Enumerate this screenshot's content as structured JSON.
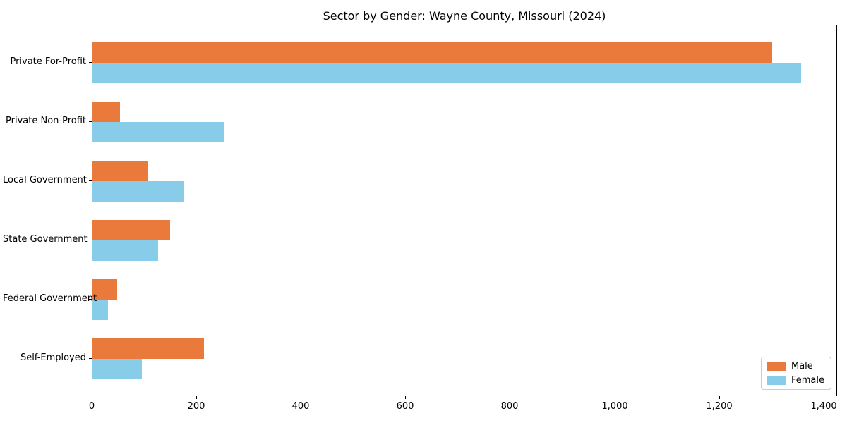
{
  "chart_data": {
    "type": "bar",
    "orientation": "horizontal",
    "title": "Sector by Gender: Wayne County, Missouri (2024)",
    "categories": [
      "Private For-Profit",
      "Private Non-Profit",
      "Local Government",
      "State Government",
      "Federal Government",
      "Self-Employed"
    ],
    "series": [
      {
        "name": "Male",
        "color": "#e97a3c",
        "values": [
          1300,
          52,
          107,
          148,
          47,
          213
        ]
      },
      {
        "name": "Female",
        "color": "#87cdea",
        "values": [
          1356,
          251,
          176,
          126,
          30,
          95
        ]
      }
    ],
    "xlabel": "",
    "ylabel": "",
    "xlim": [
      0,
      1426
    ],
    "x_ticks": [
      0,
      200,
      400,
      600,
      800,
      1000,
      1200,
      1400
    ],
    "x_tick_labels": [
      "0",
      "200",
      "400",
      "600",
      "800",
      "1,000",
      "1,200",
      "1,400"
    ],
    "grid": false,
    "legend_position": "lower right",
    "colors": {
      "male": "#e97a3c",
      "female": "#87cdea",
      "spine": "#000000",
      "background": "#ffffff"
    }
  }
}
